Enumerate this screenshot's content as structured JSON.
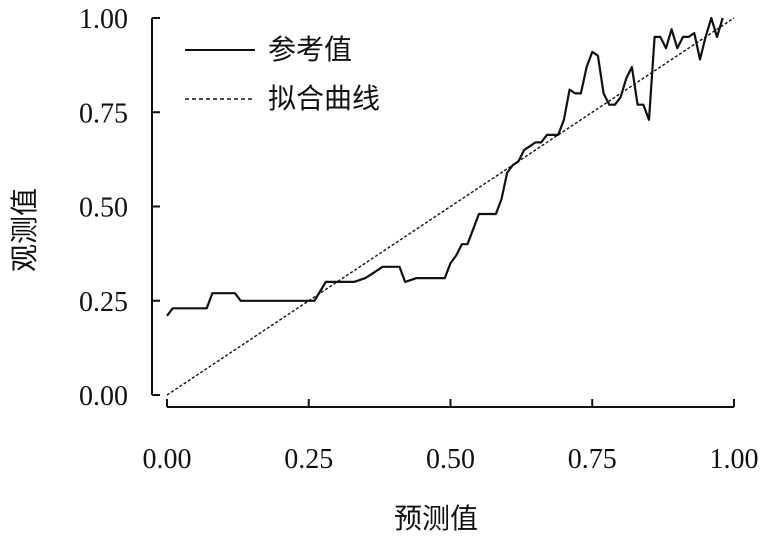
{
  "chart_data": {
    "type": "line",
    "title": "",
    "xlabel": "预测值",
    "ylabel": "观测值",
    "xlim": [
      0,
      1
    ],
    "ylim": [
      0,
      1
    ],
    "xticks": [
      "0.00",
      "0.25",
      "0.50",
      "0.75",
      "1.00"
    ],
    "yticks": [
      "0.00",
      "0.25",
      "0.50",
      "0.75",
      "1.00"
    ],
    "grid": false,
    "legend_position": "top-left",
    "series": [
      {
        "name": "参考值",
        "style": "solid",
        "color": "#111111",
        "x": [
          0.0,
          0.01,
          0.02,
          0.04,
          0.07,
          0.08,
          0.12,
          0.13,
          0.16,
          0.2,
          0.24,
          0.26,
          0.28,
          0.3,
          0.33,
          0.35,
          0.36,
          0.38,
          0.41,
          0.42,
          0.44,
          0.47,
          0.49,
          0.5,
          0.51,
          0.52,
          0.53,
          0.54,
          0.55,
          0.56,
          0.58,
          0.59,
          0.6,
          0.61,
          0.62,
          0.63,
          0.64,
          0.65,
          0.66,
          0.67,
          0.68,
          0.69,
          0.7,
          0.71,
          0.72,
          0.73,
          0.74,
          0.75,
          0.76,
          0.77,
          0.78,
          0.79,
          0.8,
          0.81,
          0.82,
          0.83,
          0.84,
          0.85,
          0.86,
          0.87,
          0.88,
          0.89,
          0.9,
          0.91,
          0.92,
          0.93,
          0.94,
          0.95,
          0.96,
          0.97,
          0.98
        ],
        "y": [
          0.21,
          0.23,
          0.23,
          0.23,
          0.23,
          0.27,
          0.27,
          0.25,
          0.25,
          0.25,
          0.25,
          0.25,
          0.3,
          0.3,
          0.3,
          0.31,
          0.32,
          0.34,
          0.34,
          0.3,
          0.31,
          0.31,
          0.31,
          0.35,
          0.37,
          0.4,
          0.4,
          0.44,
          0.48,
          0.48,
          0.48,
          0.52,
          0.59,
          0.61,
          0.62,
          0.65,
          0.66,
          0.67,
          0.67,
          0.69,
          0.69,
          0.69,
          0.73,
          0.81,
          0.8,
          0.8,
          0.87,
          0.91,
          0.9,
          0.8,
          0.77,
          0.77,
          0.79,
          0.84,
          0.87,
          0.77,
          0.77,
          0.73,
          0.95,
          0.95,
          0.92,
          0.97,
          0.92,
          0.95,
          0.95,
          0.96,
          0.89,
          0.95,
          1.0,
          0.95,
          1.0
        ]
      },
      {
        "name": "拟合曲线",
        "style": "dashed",
        "color": "#111111",
        "x": [
          0.0,
          1.0
        ],
        "y": [
          0.0,
          1.0
        ]
      }
    ]
  }
}
